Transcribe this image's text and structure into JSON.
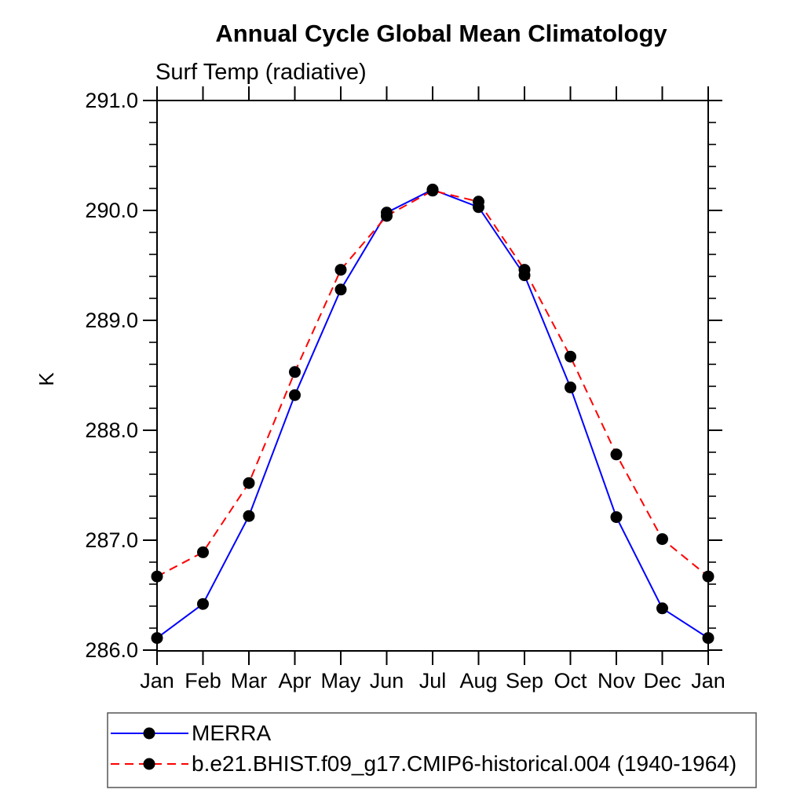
{
  "page": {
    "background_color": "#ffffff"
  },
  "chart_data": {
    "type": "line",
    "title": "Annual Cycle Global Mean Climatology",
    "subtitle": "Surf Temp (radiative)",
    "xlabel": "",
    "ylabel": "K",
    "categories": [
      "Jan",
      "Feb",
      "Mar",
      "Apr",
      "May",
      "Jun",
      "Jul",
      "Aug",
      "Sep",
      "Oct",
      "Nov",
      "Dec",
      "Jan"
    ],
    "series": [
      {
        "name": "MERRA",
        "color": "#0000ff",
        "line_style": "solid",
        "marker": "filled-circle",
        "marker_color": "#000000",
        "values": [
          286.11,
          286.42,
          287.22,
          288.32,
          289.28,
          289.98,
          290.19,
          290.03,
          289.41,
          288.39,
          287.21,
          286.38,
          286.11
        ]
      },
      {
        "name": "b.e21.BHIST.f09_g17.CMIP6-historical.004 (1940-1964)",
        "color": "#ff0000",
        "line_style": "dashed",
        "marker": "filled-circle",
        "marker_color": "#000000",
        "values": [
          286.67,
          286.89,
          287.52,
          288.53,
          289.46,
          289.95,
          290.18,
          290.08,
          289.46,
          288.67,
          287.78,
          287.01,
          286.67
        ]
      }
    ],
    "ylim": [
      286.0,
      291.0
    ],
    "ytick_step": 1.0,
    "ytick_minor_step": 0.2,
    "ytick_labels": [
      "286.0",
      "287.0",
      "288.0",
      "289.0",
      "290.0",
      "291.0"
    ],
    "grid": false,
    "axis_color": "#000000",
    "legend_position": "bottom-left",
    "ticks_outward": true
  }
}
